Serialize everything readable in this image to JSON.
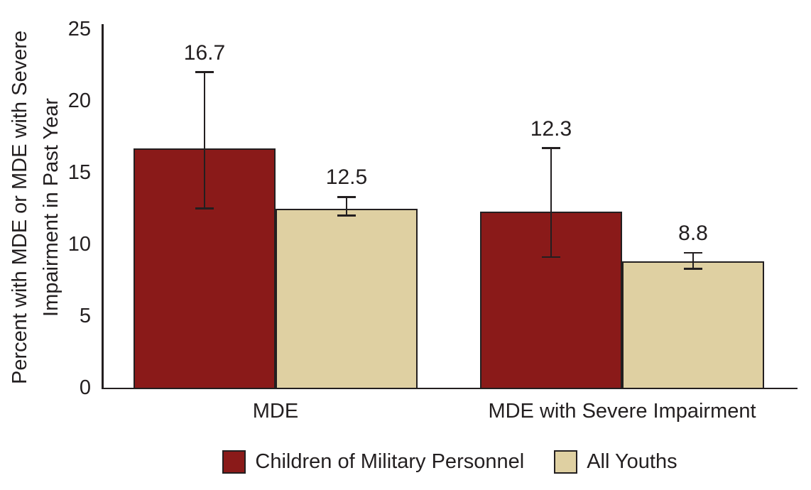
{
  "figure": {
    "background_color": "#ffffff",
    "text_color": "#231F20",
    "axis_color": "#231F20"
  },
  "chart_data": {
    "type": "bar",
    "title": "",
    "ylabel_lines": [
      "Percent with MDE or MDE with Severe",
      "Impairment in Past Year"
    ],
    "ylabel": "Percent with MDE or MDE with Severe Impairment in Past Year",
    "xlabel": "",
    "categories": [
      "MDE",
      "MDE with Severe Impairment"
    ],
    "series": [
      {
        "name": "Children of Military Personnel",
        "color": "#8A1A19",
        "values": [
          16.7,
          12.3
        ],
        "labels": [
          "16.7",
          "12.3"
        ],
        "error_low": [
          12.5,
          9.1
        ],
        "error_high": [
          22.0,
          16.7
        ]
      },
      {
        "name": "All Youths",
        "color": "#DFD0A2",
        "values": [
          12.5,
          8.8
        ],
        "labels": [
          "12.5",
          "8.8"
        ],
        "error_low": [
          12.0,
          8.3
        ],
        "error_high": [
          13.3,
          9.4
        ]
      }
    ],
    "y_ticks": [
      "0",
      "5",
      "10",
      "15",
      "20",
      "25"
    ],
    "y_tick_values": [
      0,
      5,
      10,
      15,
      20,
      25
    ],
    "ylim": [
      0,
      25
    ],
    "grid": false,
    "error_bars": true,
    "legend_position": "bottom"
  }
}
